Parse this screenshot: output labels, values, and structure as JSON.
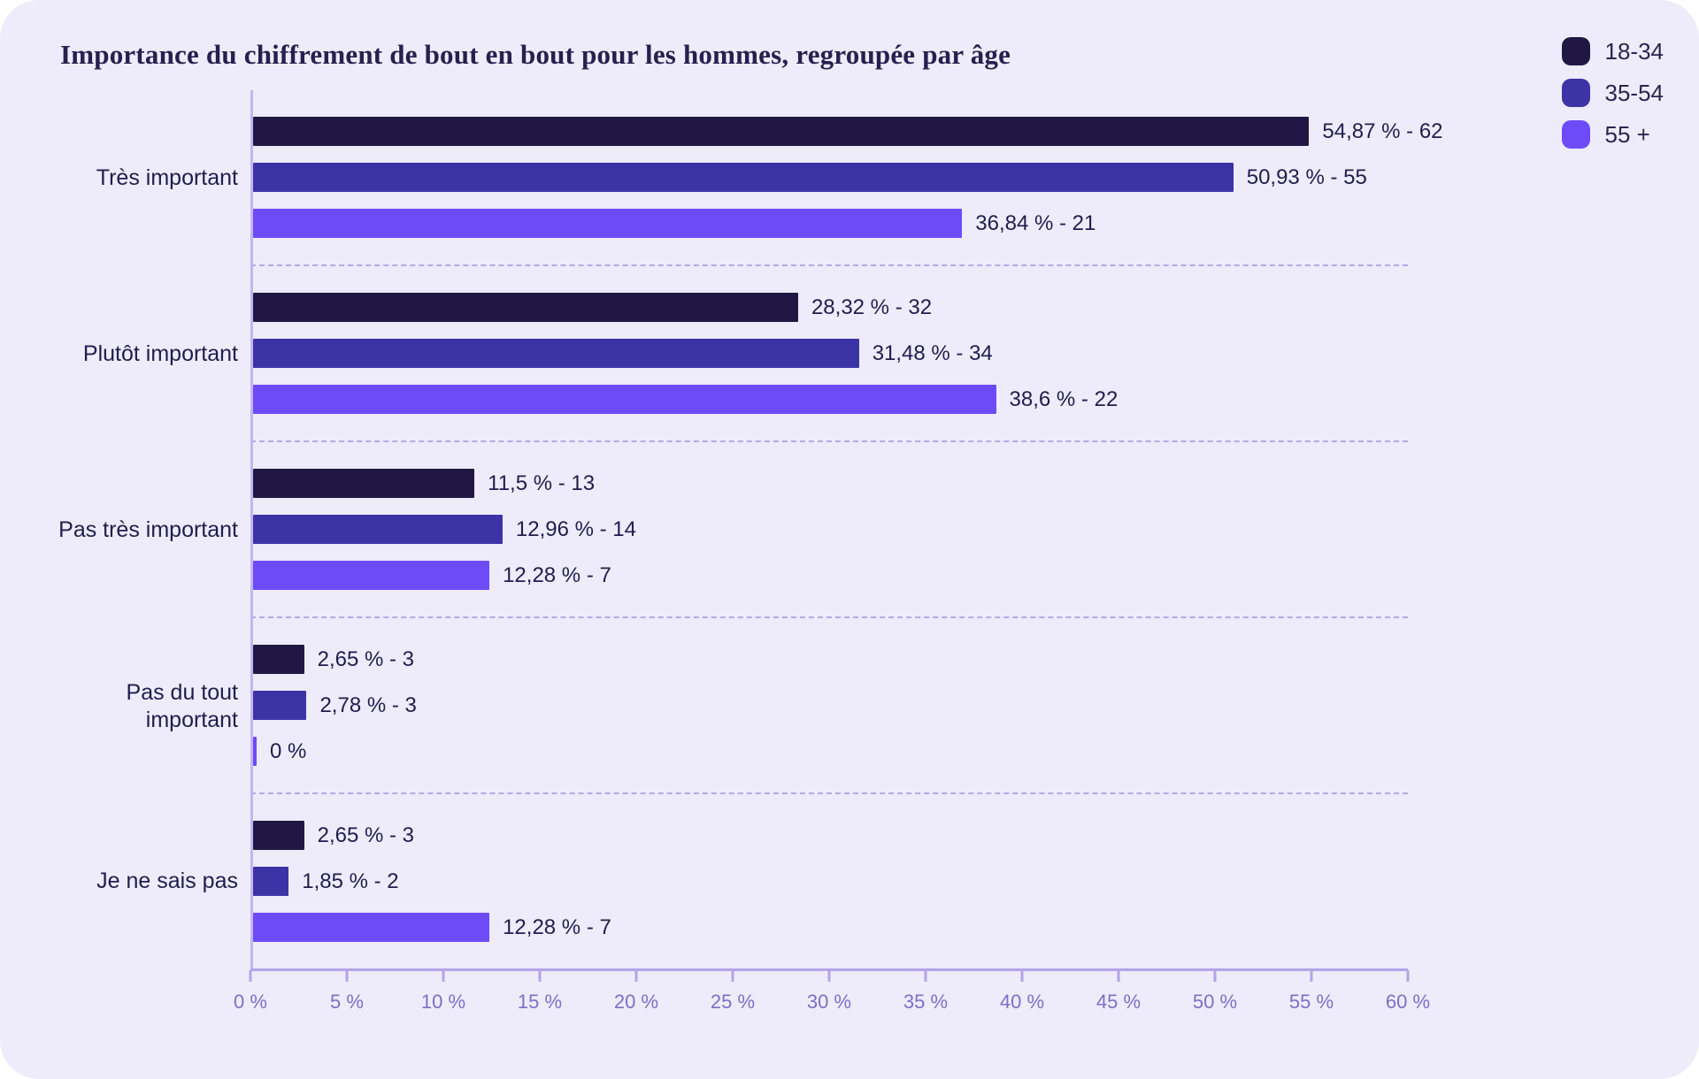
{
  "title": "Importance du chiffrement de bout en bout pour les hommes, regroupée par âge",
  "colors": {
    "page_bg": "#ffffff",
    "card_bg": "#eeecfa",
    "title_text": "#27204f",
    "label_text": "#221c4e",
    "tick_text": "#7e6ec8",
    "axis_line": "#b3a4e9",
    "separator_dash": "#b6a8e8",
    "category_axis_line": "#c3b6f0"
  },
  "legend": {
    "position": "top-right",
    "items": [
      {
        "label": "18-34",
        "color": "#211745"
      },
      {
        "label": "35-54",
        "color": "#3c33a6"
      },
      {
        "label": "55 +",
        "color": "#6d4cf7"
      }
    ]
  },
  "chart_data": {
    "type": "bar",
    "orientation": "horizontal",
    "title": "Importance du chiffrement de bout en bout pour les hommes, regroupée par âge",
    "xlabel": "",
    "ylabel": "",
    "xlim": [
      0,
      60
    ],
    "x_tick_step": 5,
    "x_ticks": [
      "0 %",
      "5 %",
      "10 %",
      "15 %",
      "20 %",
      "25 %",
      "30 %",
      "35 %",
      "40 %",
      "45 %",
      "50 %",
      "55 %",
      "60 %"
    ],
    "grid": "dashed-separators-between-categories",
    "legend_position": "top-right",
    "series": [
      "18-34",
      "35-54",
      "55 +"
    ],
    "series_colors": {
      "18-34": "#211745",
      "35-54": "#3c33a6",
      "55 +": "#6d4cf7"
    },
    "categories": [
      "Très important",
      "Plutôt important",
      "Pas très important",
      "Pas du tout important",
      "Je ne sais pas"
    ],
    "groups": [
      {
        "category": "Très important",
        "bars": [
          {
            "series": "18-34",
            "value": 54.87,
            "count": 62,
            "label": "54,87 % - 62"
          },
          {
            "series": "35-54",
            "value": 50.93,
            "count": 55,
            "label": "50,93 % - 55"
          },
          {
            "series": "55 +",
            "value": 36.84,
            "count": 21,
            "label": "36,84 % - 21"
          }
        ]
      },
      {
        "category": "Plutôt important",
        "bars": [
          {
            "series": "18-34",
            "value": 28.32,
            "count": 32,
            "label": "28,32 % - 32"
          },
          {
            "series": "35-54",
            "value": 31.48,
            "count": 34,
            "label": "31,48 % - 34"
          },
          {
            "series": "55 +",
            "value": 38.6,
            "count": 22,
            "label": "38,6 % - 22"
          }
        ]
      },
      {
        "category": "Pas très important",
        "bars": [
          {
            "series": "18-34",
            "value": 11.5,
            "count": 13,
            "label": "11,5 % - 13"
          },
          {
            "series": "35-54",
            "value": 12.96,
            "count": 14,
            "label": "12,96 % - 14"
          },
          {
            "series": "55 +",
            "value": 12.28,
            "count": 7,
            "label": "12,28 % - 7"
          }
        ]
      },
      {
        "category": "Pas du tout important",
        "bars": [
          {
            "series": "18-34",
            "value": 2.65,
            "count": 3,
            "label": "2,65 % - 3"
          },
          {
            "series": "35-54",
            "value": 2.78,
            "count": 3,
            "label": "2,78 % - 3"
          },
          {
            "series": "55 +",
            "value": 0,
            "count": null,
            "label": "0 %"
          }
        ]
      },
      {
        "category": "Je ne sais pas",
        "bars": [
          {
            "series": "18-34",
            "value": 2.65,
            "count": 3,
            "label": "2,65 % - 3"
          },
          {
            "series": "35-54",
            "value": 1.85,
            "count": 2,
            "label": "1,85 % - 2"
          },
          {
            "series": "55 +",
            "value": 12.28,
            "count": 7,
            "label": "12,28 % - 7"
          }
        ]
      }
    ]
  }
}
